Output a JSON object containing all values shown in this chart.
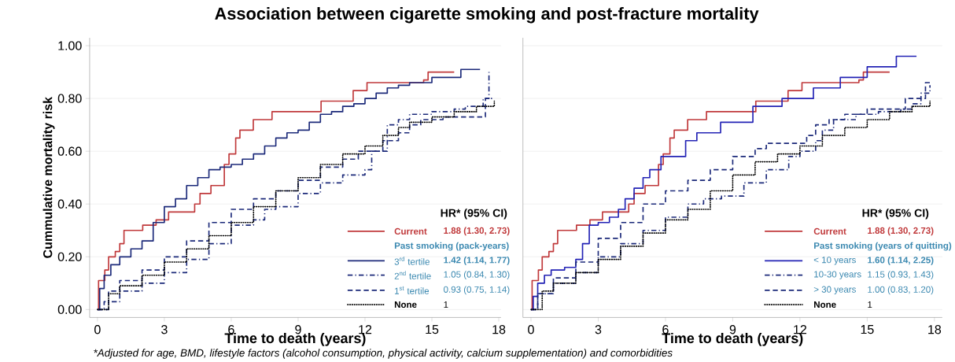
{
  "chart_data": [
    {
      "type": "step",
      "title": "Association between cigarette smoking and post-fracture mortality",
      "xlabel": "Time to death (years)",
      "ylabel": "Cummulative mortality risk",
      "legend_title": "HR* (95% CI)",
      "legend": "bottom right",
      "grid": "y",
      "xlim": [
        -0.35,
        18.1
      ],
      "ylim": [
        -0.03,
        1.03
      ],
      "xticks": [
        0,
        3,
        6,
        9,
        12,
        15,
        18
      ],
      "yticks": [
        {
          "value": 0,
          "label": "0.00"
        },
        {
          "value": 0.2,
          "label": "0.20"
        },
        {
          "value": 0.4,
          "label": "0.40"
        },
        {
          "value": 0.6,
          "label": "0.60"
        },
        {
          "value": 0.8,
          "label": "0.80"
        },
        {
          "value": 1,
          "label": "1.00"
        }
      ],
      "annotations": [
        "Past smoking (pack-years)",
        "1.88 (1.30, 2.73)",
        "1.42 (1.14, 1.77)",
        "1.05 (0.84, 1.30)",
        "0.93 (0.75, 1.14)",
        "1",
        "*Adjusted for age, BMD, lifestyle factors (alcohol consumption, physical activity, calcium supplementation) and comorbidities"
      ],
      "series": [
        {
          "name": "Current",
          "color": "#c0393b",
          "line_style": "solid",
          "x": [
            0,
            0.05,
            0.33,
            0.5,
            0.8,
            1.0,
            1.19,
            2.03,
            2.63,
            3.19,
            4.36,
            4.6,
            5.09,
            5.69,
            5.9,
            6.2,
            6.39,
            6.99,
            7.83,
            10.03,
            11.47,
            12.09,
            14.63,
            14.83,
            16.0
          ],
          "values": [
            0,
            0.11,
            0.15,
            0.2,
            0.22,
            0.25,
            0.3,
            0.32,
            0.34,
            0.37,
            0.4,
            0.44,
            0.47,
            0.55,
            0.59,
            0.65,
            0.68,
            0.72,
            0.75,
            0.79,
            0.83,
            0.86,
            0.87,
            0.9,
            0.9
          ]
        },
        {
          "name": "3$^{rd}$ tertile",
          "color": "#1c2a7a",
          "line_style": "solid",
          "x": [
            0,
            0.1,
            0.3,
            0.6,
            1.0,
            1.5,
            2.0,
            2.5,
            3.0,
            3.5,
            4.0,
            4.5,
            5.0,
            5.5,
            6.0,
            6.5,
            7.0,
            7.5,
            8.0,
            8.5,
            9.0,
            9.5,
            10.0,
            10.5,
            11.0,
            11.5,
            12.0,
            12.5,
            13.0,
            13.5,
            14.0,
            15.0,
            16.3,
            17.16
          ],
          "values": [
            0,
            0.08,
            0.13,
            0.17,
            0.2,
            0.23,
            0.26,
            0.33,
            0.39,
            0.42,
            0.47,
            0.5,
            0.53,
            0.54,
            0.55,
            0.57,
            0.59,
            0.62,
            0.65,
            0.67,
            0.68,
            0.71,
            0.74,
            0.75,
            0.77,
            0.78,
            0.8,
            0.82,
            0.84,
            0.85,
            0.86,
            0.88,
            0.91,
            0.91
          ]
        },
        {
          "name": "2$^{nd}$ tertile",
          "color": "#1c2a7a",
          "line_style": "dashdot",
          "x": [
            0,
            0.3,
            1,
            2,
            3,
            4,
            5,
            6,
            7,
            7.5,
            8,
            9,
            10,
            11,
            12,
            12.3,
            13,
            13.5,
            14,
            15,
            16,
            16.5,
            17.3,
            17.56
          ],
          "values": [
            0,
            0.03,
            0.07,
            0.1,
            0.14,
            0.19,
            0.25,
            0.32,
            0.34,
            0.38,
            0.39,
            0.44,
            0.48,
            0.51,
            0.53,
            0.6,
            0.7,
            0.72,
            0.74,
            0.75,
            0.76,
            0.77,
            0.8,
            0.9
          ]
        },
        {
          "name": "1$^{st}$ tertile",
          "color": "#1c2a7a",
          "line_style": "dashed",
          "x": [
            0,
            0.5,
            1,
            2,
            3,
            4,
            5,
            6,
            7,
            8,
            9,
            10,
            11,
            11.7,
            12.8,
            13.5,
            14,
            14.5,
            15.5,
            17.4,
            17.7
          ],
          "values": [
            0,
            0.07,
            0.11,
            0.15,
            0.2,
            0.26,
            0.33,
            0.38,
            0.42,
            0.45,
            0.49,
            0.54,
            0.57,
            0.6,
            0.64,
            0.67,
            0.7,
            0.72,
            0.73,
            0.8,
            0.8
          ]
        },
        {
          "name": "None",
          "color": "#000000",
          "line_style": "dotted",
          "x": [
            0,
            0.5,
            1,
            2,
            3,
            4,
            5,
            6,
            7,
            8,
            9,
            10,
            11,
            12,
            12.8,
            13.5,
            14,
            15,
            16,
            17,
            17.8
          ],
          "values": [
            0,
            0.06,
            0.09,
            0.13,
            0.18,
            0.23,
            0.28,
            0.33,
            0.39,
            0.45,
            0.5,
            0.55,
            0.59,
            0.62,
            0.66,
            0.69,
            0.71,
            0.73,
            0.75,
            0.77,
            0.79
          ]
        }
      ]
    },
    {
      "type": "step",
      "xlabel": "Time to death (years)",
      "legend_title": "HR* (95% CI)",
      "legend": "bottom right",
      "grid": "y",
      "tick_labels": "x",
      "xlim": [
        -0.36,
        18.35
      ],
      "ylim": [
        -0.03,
        1.03
      ],
      "xticks": [
        0,
        3,
        6,
        9,
        12,
        15,
        18
      ],
      "yticks": [
        {
          "value": 0,
          "label": null
        },
        {
          "value": 0.2,
          "label": null
        },
        {
          "value": 0.4,
          "label": null
        },
        {
          "value": 0.6,
          "label": null
        },
        {
          "value": 0.8,
          "label": null
        },
        {
          "value": 1,
          "label": null
        }
      ],
      "annotations": [
        "Past smoking (years of quitting)",
        "1.88 (1.30, 2.73)",
        "1.60 (1.14, 2.25)",
        "1.15 (0.93, 1.43)",
        "1.00 (0.83, 1.20)",
        "1"
      ],
      "series": [
        {
          "name": "Current",
          "color": "#c0393b",
          "line_style": "solid",
          "x": [
            0,
            0.05,
            0.33,
            0.5,
            0.8,
            1.0,
            1.19,
            2.03,
            2.63,
            3.19,
            4.36,
            4.6,
            5.09,
            5.69,
            5.9,
            6.2,
            6.39,
            6.99,
            7.83,
            10.03,
            11.47,
            12.09,
            14.63,
            14.83,
            16.0
          ],
          "values": [
            0,
            0.11,
            0.15,
            0.2,
            0.22,
            0.25,
            0.3,
            0.32,
            0.34,
            0.37,
            0.4,
            0.44,
            0.47,
            0.55,
            0.59,
            0.65,
            0.68,
            0.72,
            0.75,
            0.79,
            0.83,
            0.86,
            0.87,
            0.9,
            0.9
          ]
        },
        {
          "name": "< 10 years",
          "color": "#2323b5",
          "line_style": "solid",
          "x": [
            0,
            0.1,
            0.3,
            0.6,
            0.9,
            1.5,
            2.0,
            2.3,
            2.6,
            3.0,
            3.5,
            3.9,
            4.2,
            4.6,
            5.0,
            5.3,
            5.8,
            6.9,
            7.4,
            8.46,
            9.9,
            11.2,
            12.6,
            13.8,
            15.0,
            16.3,
            17.2
          ],
          "values": [
            0,
            0.05,
            0.1,
            0.13,
            0.15,
            0.16,
            0.19,
            0.25,
            0.32,
            0.33,
            0.35,
            0.38,
            0.42,
            0.46,
            0.5,
            0.53,
            0.58,
            0.64,
            0.67,
            0.71,
            0.77,
            0.8,
            0.84,
            0.88,
            0.92,
            0.96,
            0.96
          ]
        },
        {
          "name": "10-30 years",
          "color": "#1c2a7a",
          "line_style": "dashdot",
          "x": [
            0,
            0.3,
            1,
            2,
            3,
            4,
            5,
            6,
            7,
            7.7,
            8.5,
            9.5,
            10.5,
            11.5,
            12.0,
            12.7,
            13.0,
            13.5,
            14.5,
            15.5,
            16.5,
            17.0,
            17.4,
            17.8
          ],
          "values": [
            0,
            0.06,
            0.1,
            0.14,
            0.2,
            0.25,
            0.3,
            0.35,
            0.4,
            0.42,
            0.43,
            0.48,
            0.53,
            0.58,
            0.6,
            0.64,
            0.68,
            0.72,
            0.74,
            0.75,
            0.76,
            0.78,
            0.82,
            0.85
          ]
        },
        {
          "name": "> 30 years",
          "color": "#1c2a7a",
          "line_style": "dashed",
          "x": [
            0,
            0.3,
            1,
            2,
            3,
            4,
            5,
            6,
            7,
            8,
            9,
            10,
            10.5,
            12.3,
            12.7,
            13.3,
            14,
            15,
            16.7,
            17.6,
            17.8
          ],
          "values": [
            0,
            0.06,
            0.12,
            0.18,
            0.27,
            0.33,
            0.4,
            0.45,
            0.49,
            0.53,
            0.58,
            0.61,
            0.63,
            0.66,
            0.7,
            0.72,
            0.74,
            0.76,
            0.8,
            0.86,
            0.86
          ]
        },
        {
          "name": "None",
          "color": "#000000",
          "line_style": "dotted",
          "x": [
            0,
            0.5,
            1,
            2,
            3,
            4,
            5,
            6,
            7,
            8,
            9,
            10,
            11,
            12,
            13,
            14,
            15,
            16,
            17,
            17.8
          ],
          "values": [
            0,
            0.07,
            0.1,
            0.14,
            0.19,
            0.24,
            0.29,
            0.34,
            0.38,
            0.45,
            0.51,
            0.56,
            0.59,
            0.62,
            0.66,
            0.69,
            0.72,
            0.75,
            0.77,
            0.79
          ]
        }
      ]
    }
  ]
}
